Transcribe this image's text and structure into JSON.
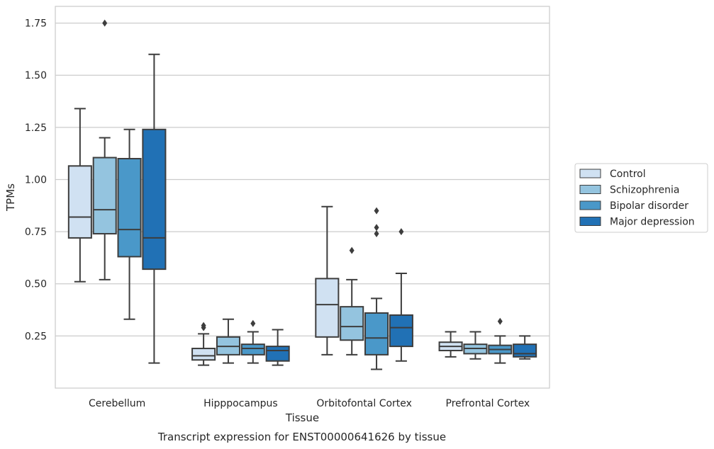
{
  "chart_data": {
    "type": "box",
    "title": "",
    "caption": "Transcript expression for ENST00000641626 by tissue",
    "xlabel": "Tissue",
    "ylabel": "TPMs",
    "ylim": [
      0.0,
      1.83
    ],
    "yticks": [
      0.25,
      0.5,
      0.75,
      1.0,
      1.25,
      1.5,
      1.75
    ],
    "ytick_labels": [
      "0.25",
      "0.50",
      "0.75",
      "1.00",
      "1.25",
      "1.50",
      "1.75"
    ],
    "grid": "horizontal",
    "legend_position": "right",
    "categories": [
      "Cerebellum",
      "Hipppocampus",
      "Orbitofontal Cortex",
      "Prefrontal Cortex"
    ],
    "series": [
      {
        "name": "Control",
        "color": "#d0e1f2",
        "boxes": [
          {
            "whisker_low": 0.51,
            "q1": 0.72,
            "median": 0.82,
            "q3": 1.065,
            "whisker_high": 1.34,
            "outliers": []
          },
          {
            "whisker_low": 0.11,
            "q1": 0.135,
            "median": 0.155,
            "q3": 0.19,
            "whisker_high": 0.26,
            "outliers": [
              0.29,
              0.3
            ]
          },
          {
            "whisker_low": 0.16,
            "q1": 0.245,
            "median": 0.4,
            "q3": 0.525,
            "whisker_high": 0.87,
            "outliers": []
          },
          {
            "whisker_low": 0.15,
            "q1": 0.18,
            "median": 0.2,
            "q3": 0.22,
            "whisker_high": 0.27,
            "outliers": []
          }
        ]
      },
      {
        "name": "Schizophrenia",
        "color": "#94c4df",
        "boxes": [
          {
            "whisker_low": 0.52,
            "q1": 0.74,
            "median": 0.855,
            "q3": 1.105,
            "whisker_high": 1.2,
            "outliers": [
              1.75
            ]
          },
          {
            "whisker_low": 0.12,
            "q1": 0.16,
            "median": 0.2,
            "q3": 0.245,
            "whisker_high": 0.33,
            "outliers": []
          },
          {
            "whisker_low": 0.16,
            "q1": 0.23,
            "median": 0.295,
            "q3": 0.39,
            "whisker_high": 0.52,
            "outliers": [
              0.66
            ]
          },
          {
            "whisker_low": 0.14,
            "q1": 0.165,
            "median": 0.19,
            "q3": 0.21,
            "whisker_high": 0.27,
            "outliers": []
          }
        ]
      },
      {
        "name": "Bipolar disorder",
        "color": "#4a98c9",
        "boxes": [
          {
            "whisker_low": 0.33,
            "q1": 0.63,
            "median": 0.76,
            "q3": 1.1,
            "whisker_high": 1.24,
            "outliers": []
          },
          {
            "whisker_low": 0.12,
            "q1": 0.16,
            "median": 0.19,
            "q3": 0.21,
            "whisker_high": 0.27,
            "outliers": [
              0.31
            ]
          },
          {
            "whisker_low": 0.09,
            "q1": 0.16,
            "median": 0.24,
            "q3": 0.36,
            "whisker_high": 0.43,
            "outliers": [
              0.74,
              0.77,
              0.85
            ]
          },
          {
            "whisker_low": 0.12,
            "q1": 0.165,
            "median": 0.185,
            "q3": 0.205,
            "whisker_high": 0.25,
            "outliers": [
              0.32
            ]
          }
        ]
      },
      {
        "name": "Major depression",
        "color": "#2171b5",
        "boxes": [
          {
            "whisker_low": 0.12,
            "q1": 0.57,
            "median": 0.72,
            "q3": 1.24,
            "whisker_high": 1.6,
            "outliers": []
          },
          {
            "whisker_low": 0.11,
            "q1": 0.13,
            "median": 0.18,
            "q3": 0.2,
            "whisker_high": 0.28,
            "outliers": []
          },
          {
            "whisker_low": 0.13,
            "q1": 0.2,
            "median": 0.29,
            "q3": 0.35,
            "whisker_high": 0.55,
            "outliers": [
              0.75
            ]
          },
          {
            "whisker_low": 0.14,
            "q1": 0.15,
            "median": 0.165,
            "q3": 0.21,
            "whisker_high": 0.25,
            "outliers": []
          }
        ]
      }
    ]
  }
}
